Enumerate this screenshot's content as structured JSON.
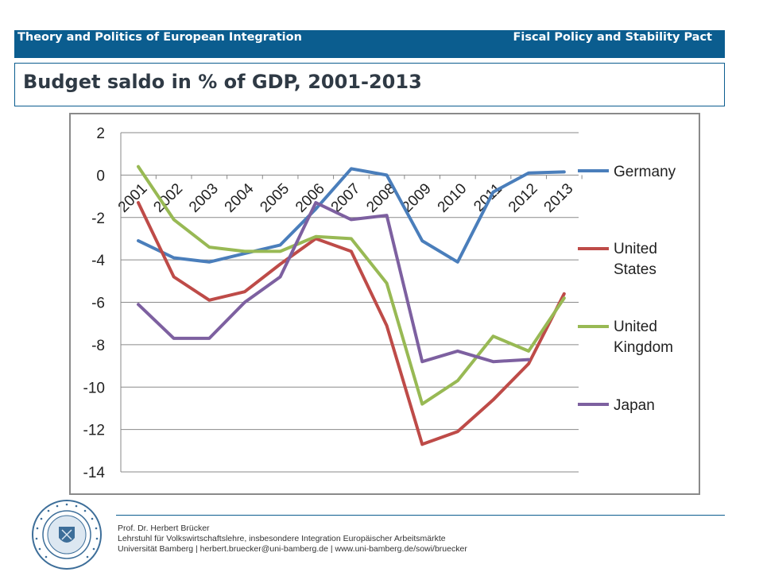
{
  "header": {
    "left_title": "Theory and Politics of European Integration",
    "right_title": "Fiscal Policy and Stability Pact",
    "bar_color": "#0b5d8f"
  },
  "slide": {
    "title": "Budget saldo in % of GDP, 2001-2013"
  },
  "chart_data": {
    "type": "line",
    "title": "",
    "xlabel": "",
    "ylabel": "",
    "categories": [
      "2001",
      "2002",
      "2003",
      "2004",
      "2005",
      "2006",
      "2007",
      "2008",
      "2009",
      "2010",
      "2011",
      "2012",
      "2013"
    ],
    "ylim": [
      -14,
      2
    ],
    "yticks": [
      2,
      0,
      -2,
      -4,
      -6,
      -8,
      -10,
      -12,
      -14
    ],
    "grid": "horizontal",
    "legend_position": "right",
    "series": [
      {
        "name": "Germany",
        "color": "#4a7ebb",
        "values": [
          -3.1,
          -3.9,
          -4.1,
          -3.7,
          -3.3,
          -1.6,
          0.3,
          0.0,
          -3.1,
          -4.1,
          -0.8,
          0.1,
          0.15
        ]
      },
      {
        "name": "United States",
        "color": "#be4b48",
        "values": [
          -1.3,
          -4.8,
          -5.9,
          -5.5,
          -4.2,
          -3.0,
          -3.6,
          -7.1,
          -12.7,
          -12.1,
          -10.6,
          -8.9,
          -5.6
        ]
      },
      {
        "name": "United Kingdom",
        "color": "#98b954",
        "values": [
          0.4,
          -2.1,
          -3.4,
          -3.6,
          -3.6,
          -2.9,
          -3.0,
          -5.1,
          -10.8,
          -9.7,
          -7.6,
          -8.3,
          -5.8
        ]
      },
      {
        "name": "Japan",
        "color": "#7d60a0",
        "values": [
          -6.1,
          -7.7,
          -7.7,
          -6.0,
          -4.8,
          -1.3,
          -2.1,
          -1.9,
          -8.8,
          -8.3,
          -8.8,
          -8.7,
          null
        ]
      }
    ]
  },
  "footer": {
    "line1": "Prof. Dr. Herbert Brücker",
    "line2": "Lehrstuhl für Volkswirtschaftslehre, insbesondere Integration Europäischer Arbeitsmärkte",
    "line3": "Universität Bamberg | herbert.bruecker@uni-bamberg.de | www.uni-bamberg.de/sowi/bruecker"
  },
  "logo": {
    "text": "UNIVERSITY OF BAMBERG · OTTO-FRIEDRICH-UNIVERSITÄT"
  }
}
